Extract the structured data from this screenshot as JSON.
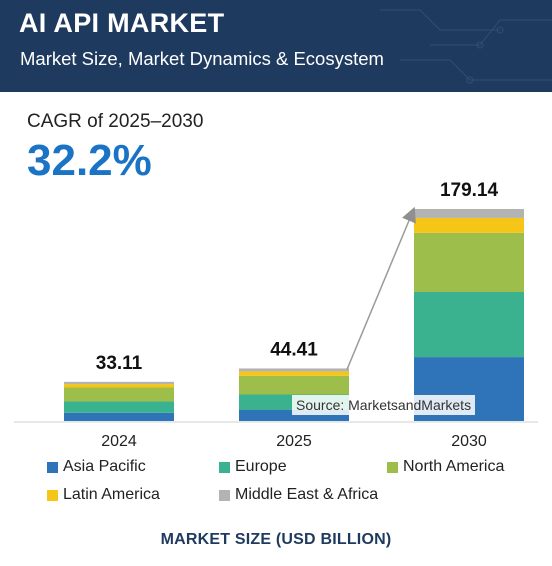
{
  "header": {
    "title": "AI API MARKET",
    "subtitle": "Market Size, Market Dynamics & Ecosystem"
  },
  "cagr": {
    "label": "CAGR of 2025–2030",
    "value": "32.2%"
  },
  "source": "Source: MarketsandMarkets",
  "footer": "MARKET SIZE (USD BILLION)",
  "colors": {
    "header_bg": "#1f3a5f",
    "accent": "#1a73c4",
    "asia_pacific": "#2f73b8",
    "europe": "#3bb28f",
    "north_america": "#9dbe4a",
    "latin_america": "#f5c518",
    "middle_east_africa": "#b3b3b3"
  },
  "chart_data": {
    "type": "bar",
    "stacked": true,
    "categories": [
      "2024",
      "2025",
      "2030"
    ],
    "totals": [
      33.11,
      44.41,
      179.14
    ],
    "total_labels": [
      "33.11",
      "44.41",
      "179.14"
    ],
    "series": [
      {
        "name": "Asia Pacific",
        "values": [
          6.9,
          9.3,
          54.0
        ]
      },
      {
        "name": "Europe",
        "values": [
          9.6,
          13.1,
          55.0
        ]
      },
      {
        "name": "North America",
        "values": [
          11.8,
          15.8,
          50.0
        ]
      },
      {
        "name": "Latin America",
        "values": [
          2.9,
          3.7,
          12.6
        ]
      },
      {
        "name": "Middle East & Africa",
        "values": [
          1.91,
          2.51,
          7.54
        ]
      }
    ],
    "legend_position": "bottom",
    "grid": false,
    "ylim": [
      0,
      179.14
    ],
    "xlabel": "MARKET SIZE (USD BILLION)",
    "annotation": "arrow from 2025 bar top to 2030 bar top"
  }
}
